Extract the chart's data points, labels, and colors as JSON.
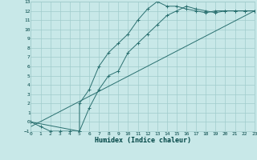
{
  "xlabel": "Humidex (Indice chaleur)",
  "bg_color": "#c8e8e8",
  "line_color": "#2a7070",
  "grid_color": "#a0cccc",
  "xlim": [
    0,
    23
  ],
  "ylim": [
    -1,
    13
  ],
  "xticks": [
    0,
    1,
    2,
    3,
    4,
    5,
    6,
    7,
    8,
    9,
    10,
    11,
    12,
    13,
    14,
    15,
    16,
    17,
    18,
    19,
    20,
    21,
    22,
    23
  ],
  "yticks": [
    -1,
    0,
    1,
    2,
    3,
    4,
    5,
    6,
    7,
    8,
    9,
    10,
    11,
    12,
    13
  ],
  "curve1_x": [
    0,
    1,
    2,
    3,
    4,
    5,
    5,
    6,
    7,
    8,
    9,
    10,
    11,
    12,
    13,
    14,
    15,
    16,
    17,
    18,
    19,
    20,
    21,
    22,
    23
  ],
  "curve1_y": [
    0,
    -0.5,
    -1,
    -1,
    -1,
    -1,
    2,
    3.5,
    6,
    7.5,
    8.5,
    9.5,
    11,
    12.2,
    13,
    12.5,
    12.5,
    12.2,
    12,
    11.8,
    12,
    12,
    12,
    12,
    12
  ],
  "curve2_x": [
    0,
    5,
    6,
    7,
    8,
    9,
    10,
    11,
    12,
    13,
    14,
    15,
    16,
    17,
    18,
    19,
    20,
    21,
    22,
    23
  ],
  "curve2_y": [
    0,
    -1,
    1.5,
    3.5,
    5.0,
    5.5,
    7.5,
    8.5,
    9.5,
    10.5,
    11.5,
    12.0,
    12.5,
    12.2,
    12.0,
    11.8,
    12.0,
    12.0,
    12.0,
    12.0
  ],
  "line_x": [
    0,
    23
  ],
  "line_y": [
    -0.5,
    12.0
  ]
}
